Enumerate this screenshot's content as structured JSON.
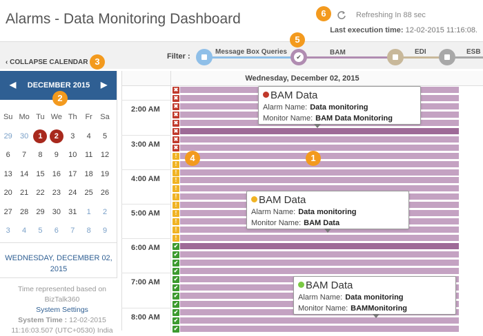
{
  "header": {
    "title": "Alarms - Data Monitoring Dashboard",
    "refresh_text": "Refreshing In 88 sec",
    "last_exec_label": "Last execution time:",
    "last_exec_value": "12-02-2015 11:16:08."
  },
  "toolbar": {
    "collapse_label": "COLLAPSE CALENDAR",
    "filter_label": "Filter :",
    "filters": [
      {
        "label": "Message Box Queries",
        "color": "#8fbfe8"
      },
      {
        "label": "BAM",
        "color": "#b08cb1",
        "checked": true
      },
      {
        "label": "EDI",
        "color": "#c8b89a"
      },
      {
        "label": "ESB",
        "color": "#a8a8a8"
      }
    ]
  },
  "calendar": {
    "month": "DECEMBER 2015",
    "weekdays": [
      "Su",
      "Mo",
      "Tu",
      "We",
      "Th",
      "Fr",
      "Sa"
    ],
    "weeks": [
      [
        "29",
        "30",
        "1",
        "2",
        "3",
        "4",
        "5"
      ],
      [
        "6",
        "7",
        "8",
        "9",
        "10",
        "11",
        "12"
      ],
      [
        "13",
        "14",
        "15",
        "16",
        "17",
        "18",
        "19"
      ],
      [
        "20",
        "21",
        "22",
        "23",
        "24",
        "25",
        "26"
      ],
      [
        "27",
        "28",
        "29",
        "30",
        "31",
        "1",
        "2"
      ],
      [
        "3",
        "4",
        "5",
        "6",
        "7",
        "8",
        "9"
      ]
    ],
    "selected_date": "WEDNESDAY, DECEMBER 02, 2015"
  },
  "time_note": {
    "line1": "Time represented based on",
    "line2": "BizTalk360",
    "settings_link": "System Settings",
    "system_time_label": "System Time :",
    "system_time_value": "12-02-2015",
    "system_time_line2": "11:16:03.507 (UTC+0530) India"
  },
  "schedule": {
    "date_header": "Wednesday, December 02, 2015",
    "times": [
      "2:00 AM",
      "3:00 AM",
      "4:00 AM",
      "5:00 AM",
      "6:00 AM",
      "7:00 AM",
      "8:00 AM"
    ]
  },
  "tooltips": [
    {
      "title": "BAM Data",
      "dot_color": "#c0392b",
      "alarm_label": "Alarm Name:",
      "alarm_value": "Data monitoring",
      "monitor_label": "Monitor Name:",
      "monitor_value": "BAM Data Monitoring"
    },
    {
      "title": "BAM Data",
      "dot_color": "#f0b323",
      "alarm_label": "Alarm Name:",
      "alarm_value": "Data monitoring",
      "monitor_label": "Monitor Name:",
      "monitor_value": "BAM Data"
    },
    {
      "title": "BAM Data",
      "dot_color": "#7ac943",
      "alarm_label": "Alarm Name:",
      "alarm_value": "Data monitoring",
      "monitor_label": "Monitor Name:",
      "monitor_value": "BAMMonitoring"
    }
  ],
  "badges": [
    "1",
    "2",
    "3",
    "4",
    "5",
    "6"
  ],
  "colors": {
    "accent": "#2f5f93",
    "badge": "#f39a1e",
    "error": "#c0392b",
    "warning": "#f0b323",
    "success": "#3c9a2e",
    "bar": "#c4a2c2"
  }
}
